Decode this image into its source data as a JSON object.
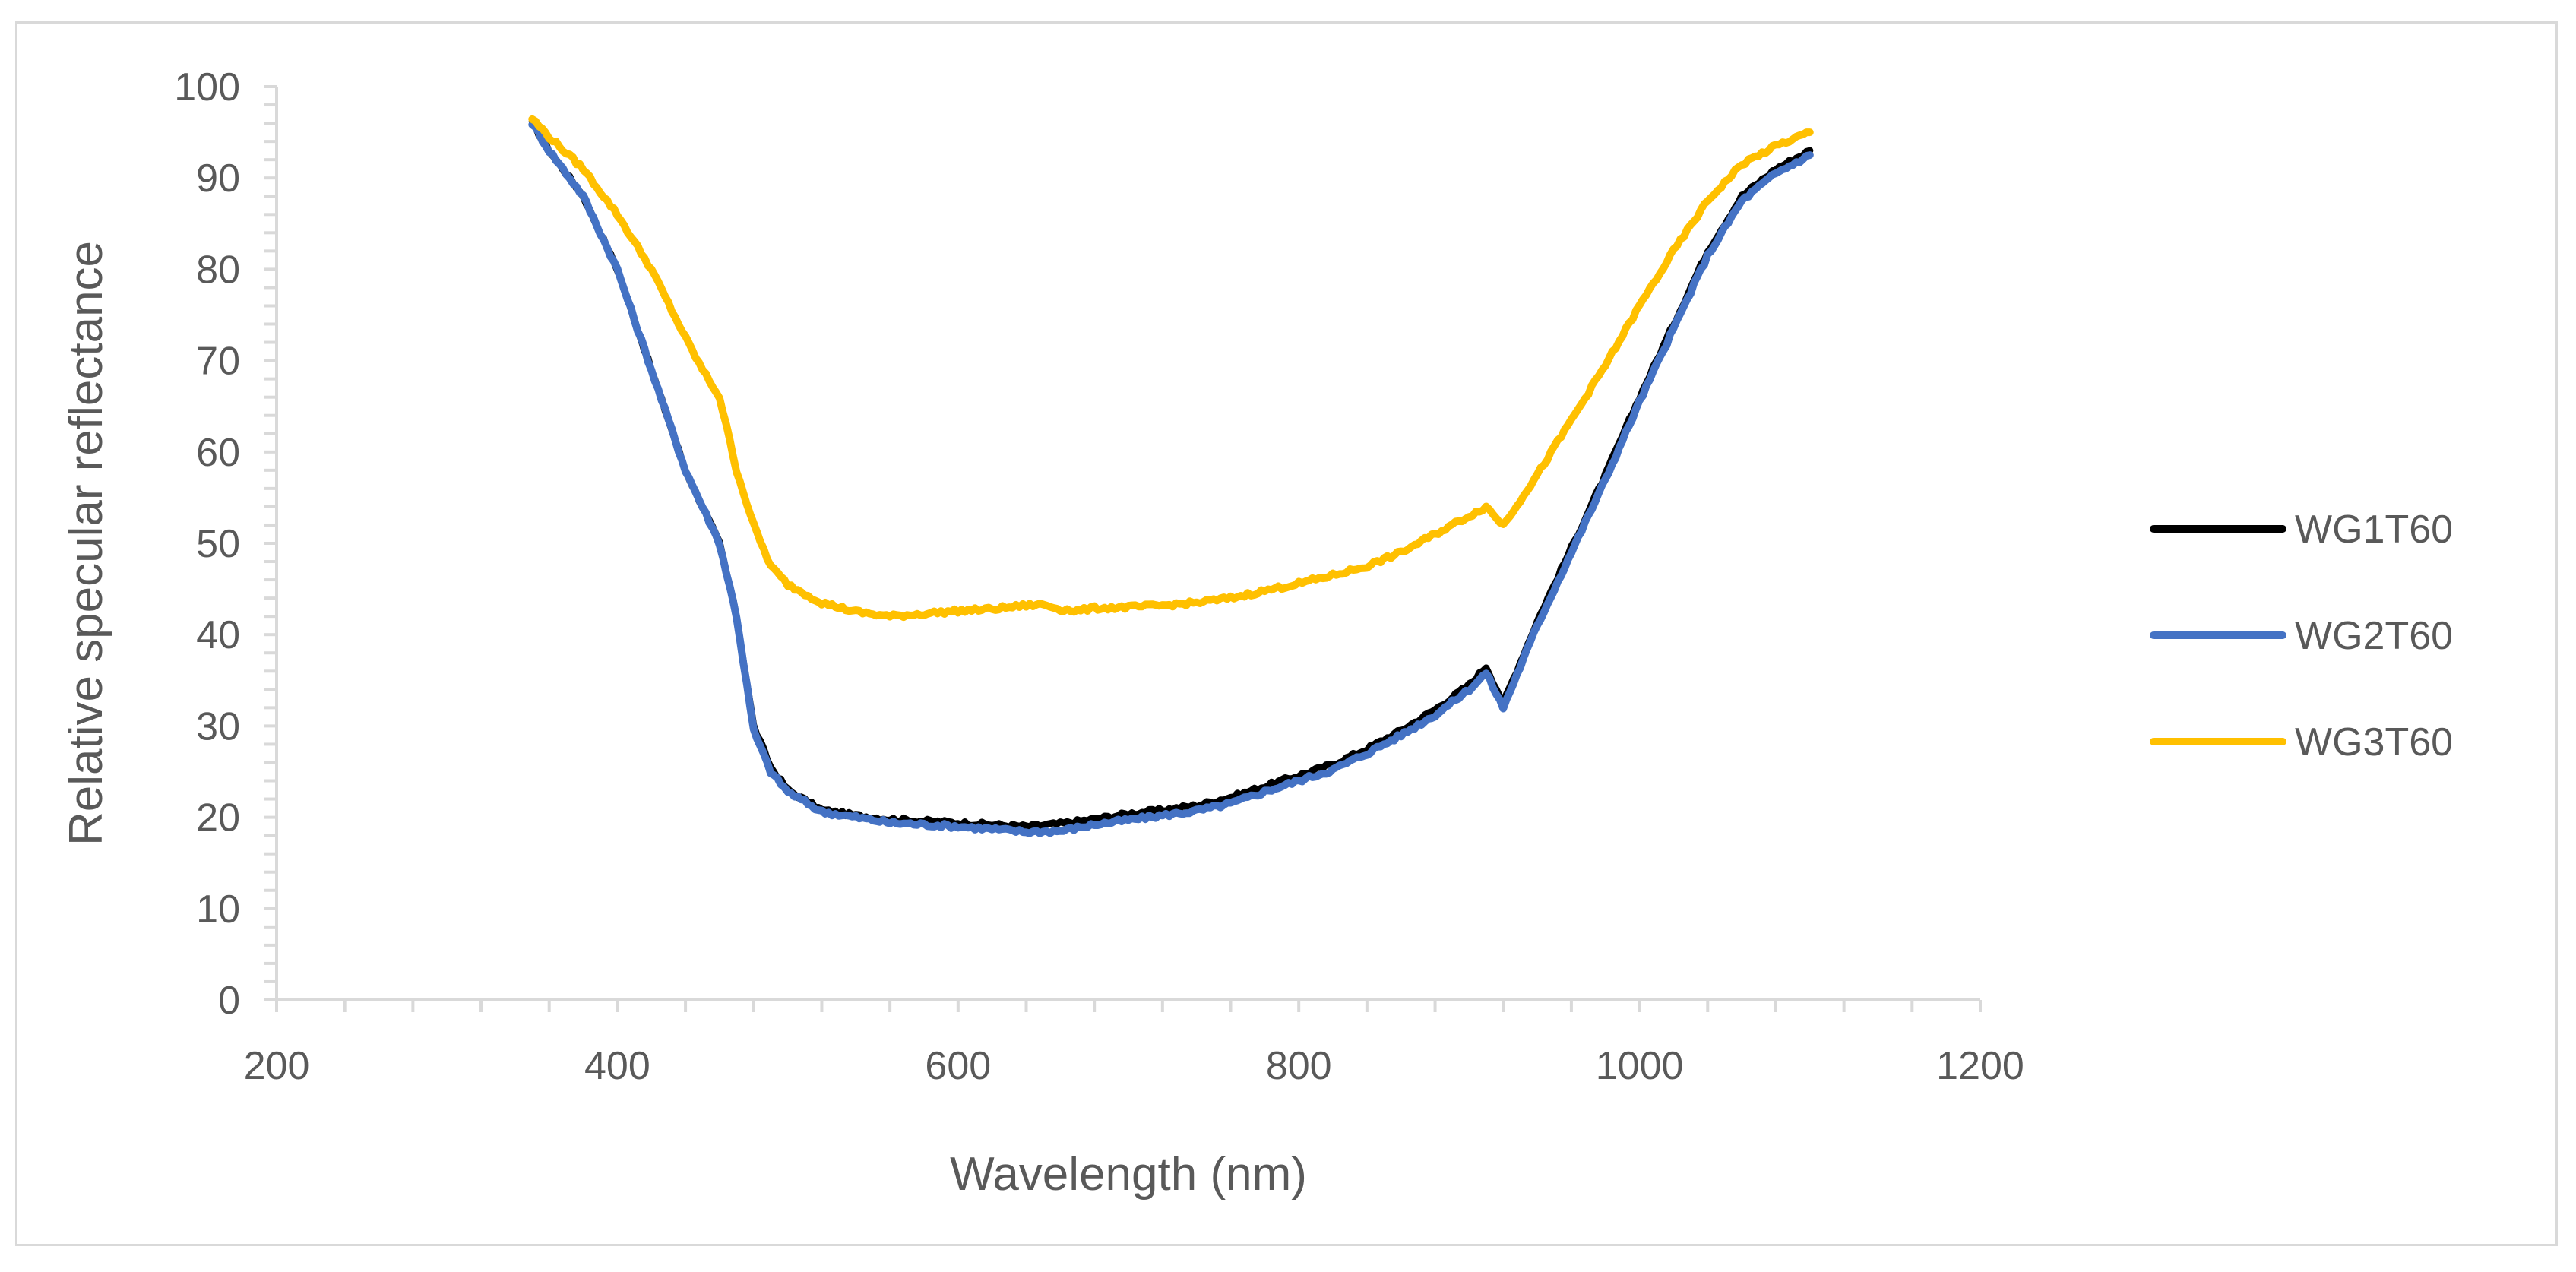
{
  "chart_data": {
    "type": "line",
    "title": "",
    "xlabel": "Wavelength (nm)",
    "ylabel": "Relative specular reflectance",
    "xlim": [
      200,
      1200
    ],
    "ylim": [
      0,
      100
    ],
    "x_major_ticks": [
      200,
      400,
      600,
      800,
      1000,
      1200
    ],
    "x_minor_step": 40,
    "y_major_ticks": [
      0,
      10,
      20,
      30,
      40,
      50,
      60,
      70,
      80,
      90,
      100
    ],
    "y_minor_step": 2,
    "grid": false,
    "legend_position": "right",
    "series": [
      {
        "name": "WG1T60",
        "color": "#000000",
        "x": [
          350,
          360,
          380,
          400,
          420,
          440,
          460,
          470,
          480,
          490,
          500,
          520,
          540,
          560,
          580,
          600,
          620,
          640,
          660,
          680,
          700,
          720,
          740,
          760,
          780,
          800,
          820,
          840,
          860,
          880,
          900,
          910,
          920,
          940,
          960,
          980,
          1000,
          1020,
          1040,
          1060,
          1080,
          1100
        ],
        "y": [
          96,
          93,
          88,
          80,
          69,
          58,
          50,
          42,
          30,
          25.5,
          23,
          20.8,
          20.2,
          19.8,
          19.6,
          19.4,
          19.2,
          19.0,
          19.3,
          19.8,
          20.4,
          20.8,
          21.3,
          22.2,
          23.4,
          24.6,
          25.8,
          27.5,
          29.5,
          31.8,
          34.5,
          36.5,
          32.5,
          41.5,
          49.5,
          57.5,
          66,
          74,
          82,
          88,
          91,
          93
        ]
      },
      {
        "name": "WG2T60",
        "color": "#4472c4",
        "x": [
          350,
          360,
          380,
          400,
          420,
          440,
          460,
          470,
          480,
          490,
          500,
          520,
          540,
          560,
          580,
          600,
          620,
          640,
          660,
          680,
          700,
          720,
          740,
          760,
          780,
          800,
          820,
          840,
          860,
          880,
          900,
          910,
          920,
          940,
          960,
          980,
          1000,
          1020,
          1040,
          1060,
          1080,
          1100
        ],
        "y": [
          96,
          93,
          88,
          80,
          69,
          58,
          50,
          42,
          29.5,
          25,
          22.8,
          20.6,
          20,
          19.4,
          19.2,
          19.0,
          18.7,
          18.4,
          18.5,
          19.2,
          19.7,
          20.2,
          20.7,
          21.5,
          22.8,
          24,
          25.2,
          27,
          29,
          31.2,
          34,
          35.8,
          32,
          41,
          49,
          57,
          65.5,
          73.5,
          81.5,
          87.5,
          90.5,
          92.5
        ]
      },
      {
        "name": "WG3T60",
        "color": "#ffc000",
        "x": [
          350,
          360,
          380,
          400,
          420,
          440,
          450,
          460,
          470,
          480,
          490,
          500,
          520,
          540,
          560,
          580,
          600,
          620,
          640,
          650,
          660,
          670,
          680,
          700,
          720,
          740,
          760,
          780,
          800,
          820,
          840,
          860,
          880,
          900,
          910,
          920,
          940,
          960,
          980,
          1000,
          1020,
          1040,
          1060,
          1080,
          1100
        ],
        "y": [
          96.5,
          94.5,
          91,
          86,
          80,
          72.5,
          69,
          66,
          58,
          52,
          47.5,
          45.5,
          43.5,
          42.5,
          42,
          42.3,
          42.6,
          42.8,
          43.2,
          43.3,
          42.8,
          42.6,
          42.9,
          43,
          43.2,
          43.5,
          44,
          44.8,
          45.6,
          46.5,
          47.5,
          49,
          51,
          53,
          54,
          52,
          57.5,
          63.5,
          69.5,
          76,
          82,
          87.5,
          91.5,
          93.5,
          95
        ]
      }
    ]
  }
}
